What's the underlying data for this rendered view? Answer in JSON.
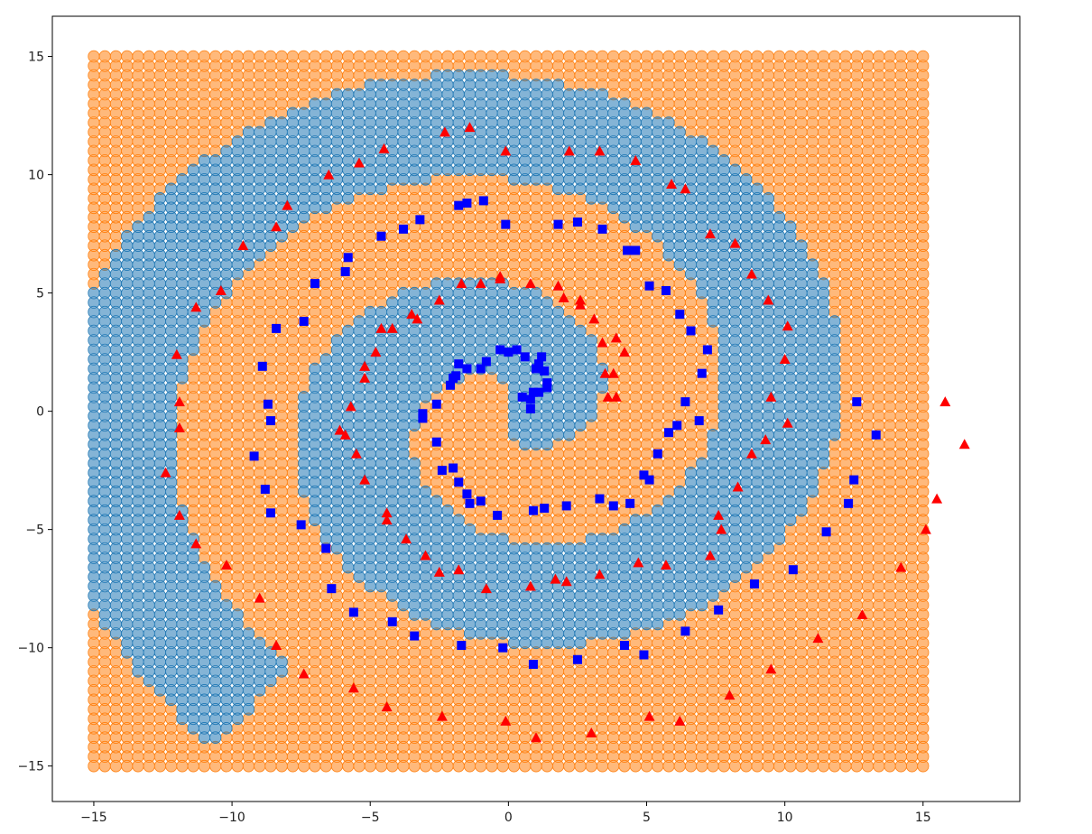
{
  "chart_data": {
    "type": "scatter",
    "title": "",
    "xlabel": "",
    "ylabel": "",
    "xlim": [
      -16.5,
      18.5
    ],
    "ylim": [
      -16.5,
      16.7
    ],
    "grid": false,
    "legend": "none",
    "x_ticks": [
      -15,
      -10,
      -5,
      0,
      5,
      10,
      15
    ],
    "y_ticks": [
      -15,
      -10,
      -5,
      0,
      5,
      10,
      15
    ],
    "x_tick_labels": [
      "−15",
      "−10",
      "−5",
      "0",
      "5",
      "10",
      "15"
    ],
    "y_tick_labels": [
      "−15",
      "−10",
      "−5",
      "0",
      "5",
      "10",
      "15"
    ],
    "background_field": {
      "description": "decision-region grid covering x and y from -15 to 15",
      "range": [
        -15,
        15
      ],
      "step": 0.4,
      "class_0_color": "#ff7f0e",
      "class_1_color": "#1f77b4",
      "class_1_region": "spiral band around the centre of the grid"
    },
    "series": [
      {
        "marker": "square",
        "color": "#0000ff",
        "points": [
          [
            -1.5,
            8.8
          ],
          [
            -0.9,
            8.9
          ],
          [
            -0.1,
            7.9
          ],
          [
            1.8,
            7.9
          ],
          [
            2.5,
            8.0
          ],
          [
            3.4,
            7.7
          ],
          [
            4.3,
            6.8
          ],
          [
            4.6,
            6.8
          ],
          [
            5.1,
            5.3
          ],
          [
            5.7,
            5.1
          ],
          [
            6.2,
            4.1
          ],
          [
            6.6,
            3.4
          ],
          [
            7.2,
            2.6
          ],
          [
            7.0,
            1.6
          ],
          [
            6.4,
            0.4
          ],
          [
            6.9,
            -0.4
          ],
          [
            6.1,
            -0.6
          ],
          [
            5.8,
            -0.9
          ],
          [
            5.4,
            -1.8
          ],
          [
            5.1,
            -2.9
          ],
          [
            4.9,
            -2.7
          ],
          [
            4.4,
            -3.9
          ],
          [
            3.8,
            -4.0
          ],
          [
            3.3,
            -3.7
          ],
          [
            2.1,
            -4.0
          ],
          [
            1.3,
            -4.1
          ],
          [
            0.9,
            -4.2
          ],
          [
            -0.4,
            -4.4
          ],
          [
            -1.0,
            -3.8
          ],
          [
            -1.4,
            -3.9
          ],
          [
            -1.5,
            -3.5
          ],
          [
            -1.8,
            -3.0
          ],
          [
            -2.0,
            -2.4
          ],
          [
            -2.4,
            -2.5
          ],
          [
            -2.6,
            -1.3
          ],
          [
            -3.1,
            -0.3
          ],
          [
            -3.1,
            -0.1
          ],
          [
            -2.6,
            0.3
          ],
          [
            -2.1,
            1.1
          ],
          [
            -2.0,
            1.4
          ],
          [
            -1.9,
            1.5
          ],
          [
            -1.8,
            2.0
          ],
          [
            -1.5,
            1.8
          ],
          [
            -1.0,
            1.8
          ],
          [
            -0.8,
            2.1
          ],
          [
            -0.3,
            2.6
          ],
          [
            0.0,
            2.5
          ],
          [
            0.3,
            2.6
          ],
          [
            0.6,
            2.3
          ],
          [
            1.2,
            2.3
          ],
          [
            1.1,
            2.0
          ],
          [
            1.0,
            1.8
          ],
          [
            1.3,
            1.7
          ],
          [
            1.4,
            1.2
          ],
          [
            1.4,
            1.0
          ],
          [
            0.9,
            0.8
          ],
          [
            1.1,
            0.8
          ],
          [
            0.8,
            0.5
          ],
          [
            0.5,
            0.6
          ],
          [
            0.8,
            0.1
          ],
          [
            -1.8,
            8.7
          ],
          [
            -3.2,
            8.1
          ],
          [
            -3.8,
            7.7
          ],
          [
            -4.6,
            7.4
          ],
          [
            -5.8,
            6.5
          ],
          [
            -5.9,
            5.9
          ],
          [
            -7.0,
            5.4
          ],
          [
            -7.4,
            3.8
          ],
          [
            -8.4,
            3.5
          ],
          [
            -8.9,
            1.9
          ],
          [
            -8.7,
            0.3
          ],
          [
            -8.6,
            -0.4
          ],
          [
            -9.2,
            -1.9
          ],
          [
            -8.8,
            -3.3
          ],
          [
            -8.6,
            -4.3
          ],
          [
            -7.5,
            -4.8
          ],
          [
            -6.6,
            -5.8
          ],
          [
            -6.4,
            -7.5
          ],
          [
            -5.6,
            -8.5
          ],
          [
            -4.2,
            -8.9
          ],
          [
            -3.4,
            -9.5
          ],
          [
            -1.7,
            -9.9
          ],
          [
            -0.2,
            -10.0
          ],
          [
            0.9,
            -10.7
          ],
          [
            2.5,
            -10.5
          ],
          [
            4.2,
            -9.9
          ],
          [
            4.9,
            -10.3
          ],
          [
            6.4,
            -9.3
          ],
          [
            7.6,
            -8.4
          ],
          [
            8.9,
            -7.3
          ],
          [
            10.3,
            -6.7
          ],
          [
            11.5,
            -5.1
          ],
          [
            12.3,
            -3.9
          ],
          [
            12.5,
            -2.9
          ],
          [
            13.3,
            -1.0
          ],
          [
            12.6,
            0.4
          ]
        ]
      },
      {
        "marker": "triangle",
        "color": "#ff0000",
        "points": [
          [
            -1.4,
            12.0
          ],
          [
            -2.3,
            11.8
          ],
          [
            -0.1,
            11.0
          ],
          [
            2.2,
            11.0
          ],
          [
            3.3,
            11.0
          ],
          [
            4.6,
            10.6
          ],
          [
            5.9,
            9.6
          ],
          [
            6.4,
            9.4
          ],
          [
            7.3,
            7.5
          ],
          [
            8.2,
            7.1
          ],
          [
            8.8,
            5.8
          ],
          [
            9.4,
            4.7
          ],
          [
            10.1,
            3.6
          ],
          [
            10.0,
            2.2
          ],
          [
            9.5,
            0.6
          ],
          [
            10.1,
            -0.5
          ],
          [
            9.3,
            -1.2
          ],
          [
            8.8,
            -1.8
          ],
          [
            8.3,
            -3.2
          ],
          [
            7.6,
            -4.4
          ],
          [
            7.7,
            -5.0
          ],
          [
            7.3,
            -6.1
          ],
          [
            5.7,
            -6.5
          ],
          [
            4.7,
            -6.4
          ],
          [
            3.3,
            -6.9
          ],
          [
            2.1,
            -7.2
          ],
          [
            1.7,
            -7.1
          ],
          [
            0.8,
            -7.4
          ],
          [
            -0.8,
            -7.5
          ],
          [
            -1.8,
            -6.7
          ],
          [
            -2.5,
            -6.8
          ],
          [
            -3.0,
            -6.1
          ],
          [
            -3.7,
            -5.4
          ],
          [
            -4.4,
            -4.6
          ],
          [
            -4.4,
            -4.3
          ],
          [
            -5.2,
            -2.9
          ],
          [
            -5.5,
            -1.8
          ],
          [
            -5.9,
            -1.0
          ],
          [
            -6.1,
            -0.8
          ],
          [
            -5.7,
            0.2
          ],
          [
            -5.2,
            1.4
          ],
          [
            -5.2,
            1.9
          ],
          [
            -4.8,
            2.5
          ],
          [
            -4.2,
            3.5
          ],
          [
            -4.6,
            3.5
          ],
          [
            -3.5,
            4.1
          ],
          [
            -3.3,
            3.9
          ],
          [
            -2.5,
            4.7
          ],
          [
            -1.7,
            5.4
          ],
          [
            -1.0,
            5.4
          ],
          [
            -0.3,
            5.6
          ],
          [
            -0.3,
            5.7
          ],
          [
            0.8,
            5.4
          ],
          [
            1.8,
            5.3
          ],
          [
            2.0,
            4.8
          ],
          [
            2.6,
            4.7
          ],
          [
            2.6,
            4.5
          ],
          [
            3.1,
            3.9
          ],
          [
            3.9,
            3.1
          ],
          [
            3.4,
            2.9
          ],
          [
            4.2,
            2.5
          ],
          [
            3.5,
            1.6
          ],
          [
            3.8,
            1.6
          ],
          [
            3.6,
            0.6
          ],
          [
            3.9,
            0.6
          ],
          [
            -0.1,
            -13.1
          ],
          [
            1.0,
            -13.8
          ],
          [
            3.0,
            -13.6
          ],
          [
            5.1,
            -12.9
          ],
          [
            6.2,
            -13.1
          ],
          [
            8.0,
            -12.0
          ],
          [
            9.5,
            -10.9
          ],
          [
            11.2,
            -9.6
          ],
          [
            12.8,
            -8.6
          ],
          [
            14.2,
            -6.6
          ],
          [
            15.1,
            -5.0
          ],
          [
            15.5,
            -3.7
          ],
          [
            16.5,
            -1.4
          ],
          [
            15.8,
            0.4
          ],
          [
            -2.4,
            -12.9
          ],
          [
            -4.4,
            -12.5
          ],
          [
            -5.6,
            -11.7
          ],
          [
            -7.4,
            -11.1
          ],
          [
            -8.4,
            -9.9
          ],
          [
            -9.0,
            -7.9
          ],
          [
            -10.2,
            -6.5
          ],
          [
            -11.3,
            -5.6
          ],
          [
            -11.9,
            -4.4
          ],
          [
            -11.9,
            -0.7
          ],
          [
            -11.9,
            0.4
          ],
          [
            -12.0,
            2.4
          ],
          [
            -12.4,
            -2.6
          ],
          [
            -11.3,
            4.4
          ],
          [
            -10.4,
            5.1
          ],
          [
            -9.6,
            7.0
          ],
          [
            -8.4,
            7.8
          ],
          [
            -8.0,
            8.7
          ],
          [
            -6.5,
            10.0
          ],
          [
            -5.4,
            10.5
          ],
          [
            -4.5,
            11.1
          ]
        ]
      }
    ]
  }
}
